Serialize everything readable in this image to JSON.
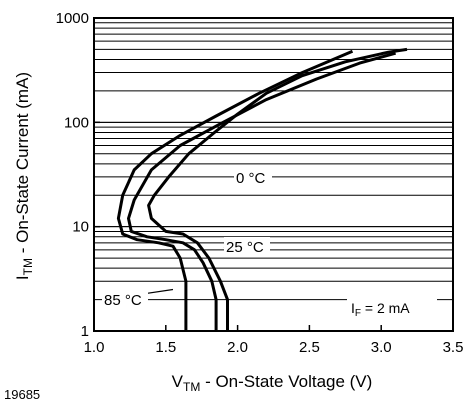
{
  "figure_id": "19685",
  "chart_data": {
    "type": "line",
    "xlabel_main": "V",
    "xlabel_sub": "TM",
    "xlabel_rest": " - On-State Voltage (V)",
    "ylabel_main": "I",
    "ylabel_sub": "TM",
    "ylabel_rest": " - On-State Current (mA)",
    "xlim": [
      1.0,
      3.5
    ],
    "ylim": [
      1,
      1000
    ],
    "y_scale": "log",
    "x_ticks": [
      "1.0",
      "1.5",
      "2.0",
      "2.5",
      "3.0",
      "3.5"
    ],
    "x_tick_values": [
      1.0,
      1.5,
      2.0,
      2.5,
      3.0,
      3.5
    ],
    "y_ticks": [
      "1",
      "10",
      "100",
      "1000"
    ],
    "y_tick_values": [
      1,
      10,
      100,
      1000
    ],
    "grid": "horizontal log minor lines",
    "annotation_condition_main": "I",
    "annotation_condition_sub": "F",
    "annotation_condition_rest": " = 2 mA",
    "series": [
      {
        "name": "0 °C",
        "x": [
          1.93,
          1.93,
          1.88,
          1.8,
          1.72,
          1.62,
          1.5,
          1.4,
          1.38,
          1.42,
          1.52,
          1.66,
          1.84,
          2.0,
          2.2,
          2.45,
          2.75,
          3.05,
          3.18
        ],
        "y": [
          1,
          2,
          3,
          5,
          7,
          8.5,
          9,
          12,
          16,
          20,
          30,
          50,
          80,
          120,
          190,
          280,
          380,
          470,
          500
        ]
      },
      {
        "name": "25 °C",
        "x": [
          1.85,
          1.85,
          1.82,
          1.76,
          1.7,
          1.62,
          1.5,
          1.37,
          1.26,
          1.24,
          1.28,
          1.4,
          1.6,
          1.9,
          2.2,
          2.55,
          2.85,
          3.1
        ],
        "y": [
          1,
          2,
          3,
          4.5,
          6,
          7,
          7.5,
          8,
          9,
          12,
          18,
          35,
          60,
          100,
          165,
          260,
          370,
          460
        ]
      },
      {
        "name": "85 °C",
        "x": [
          1.64,
          1.64,
          1.64,
          1.6,
          1.55,
          1.45,
          1.3,
          1.2,
          1.17,
          1.2,
          1.28,
          1.4,
          1.6,
          1.85,
          2.15,
          2.45,
          2.8
        ],
        "y": [
          1,
          2,
          3,
          5,
          6.5,
          7,
          7.5,
          8.5,
          12,
          20,
          35,
          50,
          75,
          115,
          190,
          300,
          480
        ]
      }
    ],
    "series_labels": [
      {
        "series": "0 °C",
        "x": 2.0,
        "y": 30
      },
      {
        "series": "25 °C",
        "x": 1.95,
        "y": 6
      },
      {
        "series": "85 °C",
        "x": 1.55,
        "y": 2.5
      }
    ],
    "colors": {
      "line": "#000000",
      "grid": "#000000",
      "background": "#ffffff"
    }
  }
}
